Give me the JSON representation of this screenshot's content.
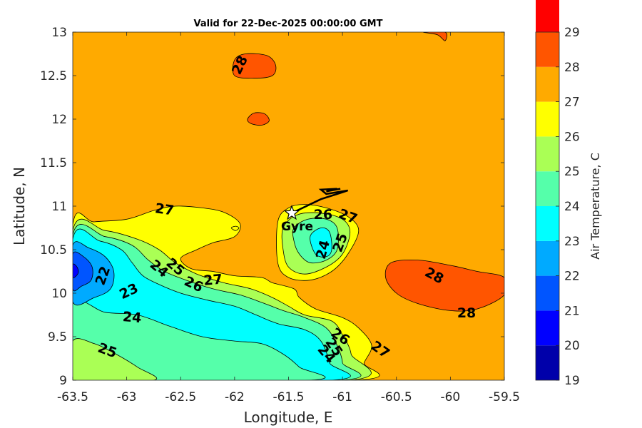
{
  "chart_data": {
    "type": "filled-contour",
    "title": "Valid for 22-Dec-2025 00:00:00 GMT",
    "xlabel": "Longitude, E",
    "ylabel": "Latitude, N",
    "xlim": [
      -63.5,
      -59.5
    ],
    "ylim": [
      9,
      13
    ],
    "xticks": [
      -63.5,
      -63,
      -62.5,
      -62,
      -61.5,
      -61,
      -60.5,
      -60,
      -59.5
    ],
    "yticks": [
      9,
      9.5,
      10,
      10.5,
      11,
      11.5,
      12,
      12.5,
      13
    ],
    "colorbar": {
      "label": "Air Temperature, C",
      "ticks": [
        19,
        20,
        21,
        22,
        23,
        24,
        25,
        26,
        27,
        28,
        29
      ],
      "colors": [
        "#0000aa",
        "#0000ff",
        "#0055ff",
        "#00aaff",
        "#00ffff",
        "#55ffaa",
        "#aaff55",
        "#ffff00",
        "#ffaa00",
        "#ff5500",
        "#ff0000"
      ]
    },
    "background_level": 27,
    "regions": [
      {
        "level": 26,
        "points": [
          [
            -63.5,
            10.78
          ],
          [
            -63.3,
            10.82
          ],
          [
            -63.0,
            10.85
          ],
          [
            -62.75,
            10.95
          ],
          [
            -62.55,
            11.0
          ],
          [
            -62.3,
            10.98
          ],
          [
            -62.1,
            10.93
          ],
          [
            -61.95,
            10.8
          ],
          [
            -62.0,
            10.65
          ],
          [
            -62.2,
            10.58
          ],
          [
            -62.35,
            10.5
          ],
          [
            -62.5,
            10.4
          ],
          [
            -62.4,
            10.28
          ],
          [
            -62.2,
            10.25
          ],
          [
            -62.0,
            10.2
          ],
          [
            -61.75,
            10.18
          ],
          [
            -61.65,
            10.12
          ],
          [
            -61.45,
            10.05
          ],
          [
            -61.4,
            9.95
          ],
          [
            -61.25,
            9.82
          ],
          [
            -61.0,
            9.72
          ],
          [
            -60.85,
            9.6
          ],
          [
            -60.73,
            9.4
          ],
          [
            -60.8,
            9.2
          ],
          [
            -60.87,
            9.0
          ],
          [
            -63.5,
            9.0
          ]
        ]
      },
      {
        "level": 26,
        "points": [
          [
            -61.6,
            10.82
          ],
          [
            -61.5,
            10.98
          ],
          [
            -61.35,
            11.02
          ],
          [
            -61.15,
            10.98
          ],
          [
            -60.95,
            10.88
          ],
          [
            -60.85,
            10.72
          ],
          [
            -60.95,
            10.45
          ],
          [
            -61.1,
            10.25
          ],
          [
            -61.3,
            10.15
          ],
          [
            -61.5,
            10.18
          ],
          [
            -61.6,
            10.35
          ]
        ]
      },
      {
        "level": 25,
        "points": [
          [
            -63.5,
            10.72
          ],
          [
            -63.2,
            10.72
          ],
          [
            -62.9,
            10.62
          ],
          [
            -62.7,
            10.5
          ],
          [
            -62.55,
            10.35
          ],
          [
            -62.35,
            10.22
          ],
          [
            -62.1,
            10.12
          ],
          [
            -61.85,
            10.05
          ],
          [
            -61.65,
            9.95
          ],
          [
            -61.5,
            9.85
          ],
          [
            -61.35,
            9.75
          ],
          [
            -61.1,
            9.68
          ],
          [
            -61.0,
            9.52
          ],
          [
            -60.92,
            9.3
          ],
          [
            -60.93,
            9.0
          ],
          [
            -63.5,
            9.0
          ]
        ]
      },
      {
        "level": 25,
        "points": [
          [
            -61.55,
            10.75
          ],
          [
            -61.42,
            10.9
          ],
          [
            -61.2,
            10.92
          ],
          [
            -61.0,
            10.85
          ],
          [
            -60.93,
            10.7
          ],
          [
            -61.0,
            10.45
          ],
          [
            -61.15,
            10.3
          ],
          [
            -61.35,
            10.22
          ],
          [
            -61.5,
            10.3
          ],
          [
            -61.55,
            10.5
          ]
        ]
      },
      {
        "level": 24,
        "points": [
          [
            -63.5,
            10.67
          ],
          [
            -63.2,
            10.65
          ],
          [
            -62.95,
            10.55
          ],
          [
            -62.8,
            10.38
          ],
          [
            -62.65,
            10.25
          ],
          [
            -62.45,
            10.15
          ],
          [
            -62.2,
            10.05
          ],
          [
            -61.95,
            9.98
          ],
          [
            -61.72,
            9.88
          ],
          [
            -61.55,
            9.8
          ],
          [
            -61.35,
            9.72
          ],
          [
            -61.15,
            9.6
          ],
          [
            -61.05,
            9.4
          ],
          [
            -61.0,
            9.2
          ],
          [
            -61.02,
            9.0
          ],
          [
            -63.5,
            9.0
          ]
        ]
      },
      {
        "level": 24,
        "points": [
          [
            -61.45,
            10.75
          ],
          [
            -61.32,
            10.85
          ],
          [
            -61.15,
            10.85
          ],
          [
            -61.05,
            10.75
          ],
          [
            -61.05,
            10.5
          ],
          [
            -61.15,
            10.38
          ],
          [
            -61.3,
            10.35
          ],
          [
            -61.4,
            10.45
          ],
          [
            -61.45,
            10.6
          ]
        ]
      },
      {
        "level": 23,
        "points": [
          [
            -63.5,
            10.62
          ],
          [
            -63.25,
            10.6
          ],
          [
            -63.05,
            10.5
          ],
          [
            -62.95,
            10.35
          ],
          [
            -62.85,
            10.2
          ],
          [
            -62.7,
            10.1
          ],
          [
            -62.5,
            10.0
          ],
          [
            -62.25,
            9.92
          ],
          [
            -62.0,
            9.85
          ],
          [
            -61.8,
            9.75
          ],
          [
            -61.6,
            9.65
          ],
          [
            -61.35,
            9.58
          ],
          [
            -61.2,
            9.45
          ],
          [
            -61.12,
            9.2
          ],
          [
            -61.1,
            9.0
          ],
          [
            -63.5,
            9.0
          ]
        ]
      },
      {
        "level": 23,
        "points": [
          [
            -61.3,
            10.65
          ],
          [
            -61.2,
            10.75
          ],
          [
            -61.12,
            10.7
          ],
          [
            -61.1,
            10.5
          ],
          [
            -61.15,
            10.42
          ],
          [
            -61.25,
            10.45
          ]
        ]
      },
      {
        "level": 24,
        "points": [
          [
            -63.5,
            9.88
          ],
          [
            -63.2,
            9.78
          ],
          [
            -62.9,
            9.75
          ],
          [
            -62.6,
            9.62
          ],
          [
            -62.3,
            9.5
          ],
          [
            -62.0,
            9.45
          ],
          [
            -61.75,
            9.42
          ],
          [
            -61.55,
            9.3
          ],
          [
            -61.4,
            9.15
          ],
          [
            -61.3,
            9.0
          ],
          [
            -63.5,
            9.0
          ]
        ]
      },
      {
        "level": 25,
        "points": [
          [
            -63.5,
            9.45
          ],
          [
            -63.3,
            9.42
          ],
          [
            -63.1,
            9.3
          ],
          [
            -62.9,
            9.15
          ],
          [
            -62.75,
            9.0
          ],
          [
            -63.5,
            9.0
          ]
        ]
      },
      {
        "level": 22,
        "points": [
          [
            -63.5,
            10.55
          ],
          [
            -63.35,
            10.52
          ],
          [
            -63.2,
            10.42
          ],
          [
            -63.12,
            10.25
          ],
          [
            -63.15,
            10.05
          ],
          [
            -63.3,
            9.95
          ],
          [
            -63.5,
            9.9
          ]
        ]
      },
      {
        "level": 21,
        "points": [
          [
            -63.5,
            10.45
          ],
          [
            -63.4,
            10.42
          ],
          [
            -63.32,
            10.3
          ],
          [
            -63.33,
            10.15
          ],
          [
            -63.42,
            10.08
          ],
          [
            -63.5,
            10.05
          ]
        ]
      },
      {
        "level": 20,
        "points": [
          [
            -63.5,
            10.33
          ],
          [
            -63.46,
            10.3
          ],
          [
            -63.45,
            10.23
          ],
          [
            -63.5,
            10.18
          ]
        ]
      },
      {
        "level": 28,
        "points": [
          [
            -60.55,
            10.35
          ],
          [
            -60.3,
            10.38
          ],
          [
            -60.0,
            10.32
          ],
          [
            -59.75,
            10.25
          ],
          [
            -59.5,
            10.18
          ],
          [
            -59.5,
            9.98
          ],
          [
            -59.75,
            9.82
          ],
          [
            -60.0,
            9.8
          ],
          [
            -60.3,
            9.88
          ],
          [
            -60.5,
            10.0
          ],
          [
            -60.6,
            10.18
          ]
        ]
      },
      {
        "level": 28,
        "points": [
          [
            -62.0,
            12.5
          ],
          [
            -62.0,
            12.68
          ],
          [
            -61.9,
            12.75
          ],
          [
            -61.7,
            12.73
          ],
          [
            -61.62,
            12.62
          ],
          [
            -61.65,
            12.5
          ],
          [
            -61.82,
            12.47
          ]
        ]
      },
      {
        "level": 26,
        "points": [
          [
            -62.03,
            10.75
          ],
          [
            -61.99,
            10.77
          ],
          [
            -61.96,
            10.75
          ],
          [
            -61.99,
            10.72
          ]
        ]
      }
    ],
    "islands": [
      {
        "level": 28,
        "points": [
          [
            -61.88,
            12.0
          ],
          [
            -61.82,
            12.07
          ],
          [
            -61.72,
            12.06
          ],
          [
            -61.68,
            11.98
          ],
          [
            -61.75,
            11.93
          ],
          [
            -61.85,
            11.95
          ]
        ]
      },
      {
        "level": 28,
        "points": [
          [
            -60.25,
            13.0
          ],
          [
            -60.12,
            12.97
          ],
          [
            -60.05,
            12.9
          ],
          [
            -60.05,
            13.0
          ]
        ]
      }
    ],
    "contour_labels": [
      {
        "text": "28",
        "lon": -61.95,
        "lat": 12.62,
        "angle": -65
      },
      {
        "text": "27",
        "lon": -62.65,
        "lat": 10.96,
        "angle": 8
      },
      {
        "text": "22",
        "lon": -63.22,
        "lat": 10.2,
        "angle": -70
      },
      {
        "text": "23",
        "lon": -62.98,
        "lat": 10.02,
        "angle": -25
      },
      {
        "text": "24",
        "lon": -62.7,
        "lat": 10.28,
        "angle": 40
      },
      {
        "text": "25",
        "lon": -62.55,
        "lat": 10.3,
        "angle": 40
      },
      {
        "text": "26",
        "lon": -62.38,
        "lat": 10.1,
        "angle": 25
      },
      {
        "text": "27",
        "lon": -62.2,
        "lat": 10.15,
        "angle": -5
      },
      {
        "text": "24",
        "lon": -62.95,
        "lat": 9.72,
        "angle": 5
      },
      {
        "text": "25",
        "lon": -63.18,
        "lat": 9.34,
        "angle": 20
      },
      {
        "text": "26",
        "lon": -61.18,
        "lat": 10.9,
        "angle": 0
      },
      {
        "text": "27",
        "lon": -60.95,
        "lat": 10.88,
        "angle": 20
      },
      {
        "text": "25",
        "lon": -61.02,
        "lat": 10.58,
        "angle": -70
      },
      {
        "text": "24",
        "lon": -61.18,
        "lat": 10.5,
        "angle": -75
      },
      {
        "text": "28",
        "lon": -60.15,
        "lat": 10.2,
        "angle": 28
      },
      {
        "text": "28",
        "lon": -59.85,
        "lat": 9.77,
        "angle": 0
      },
      {
        "text": "26",
        "lon": -61.02,
        "lat": 9.5,
        "angle": 35
      },
      {
        "text": "25",
        "lon": -61.08,
        "lat": 9.38,
        "angle": 55
      },
      {
        "text": "24",
        "lon": -61.15,
        "lat": 9.3,
        "angle": 50
      },
      {
        "text": "27",
        "lon": -60.65,
        "lat": 9.35,
        "angle": 35
      }
    ],
    "glider": {
      "name": "Gyre",
      "position": [
        -61.47,
        10.92
      ],
      "track": [
        [
          -61.47,
          10.92
        ],
        [
          -61.2,
          11.08
        ],
        [
          -61.0,
          11.16
        ],
        [
          -60.95,
          11.18
        ],
        [
          -61.15,
          11.14
        ],
        [
          -61.2,
          11.19
        ],
        [
          -61.05,
          11.2
        ],
        [
          -61.15,
          11.17
        ],
        [
          -61.02,
          11.2
        ]
      ]
    }
  }
}
